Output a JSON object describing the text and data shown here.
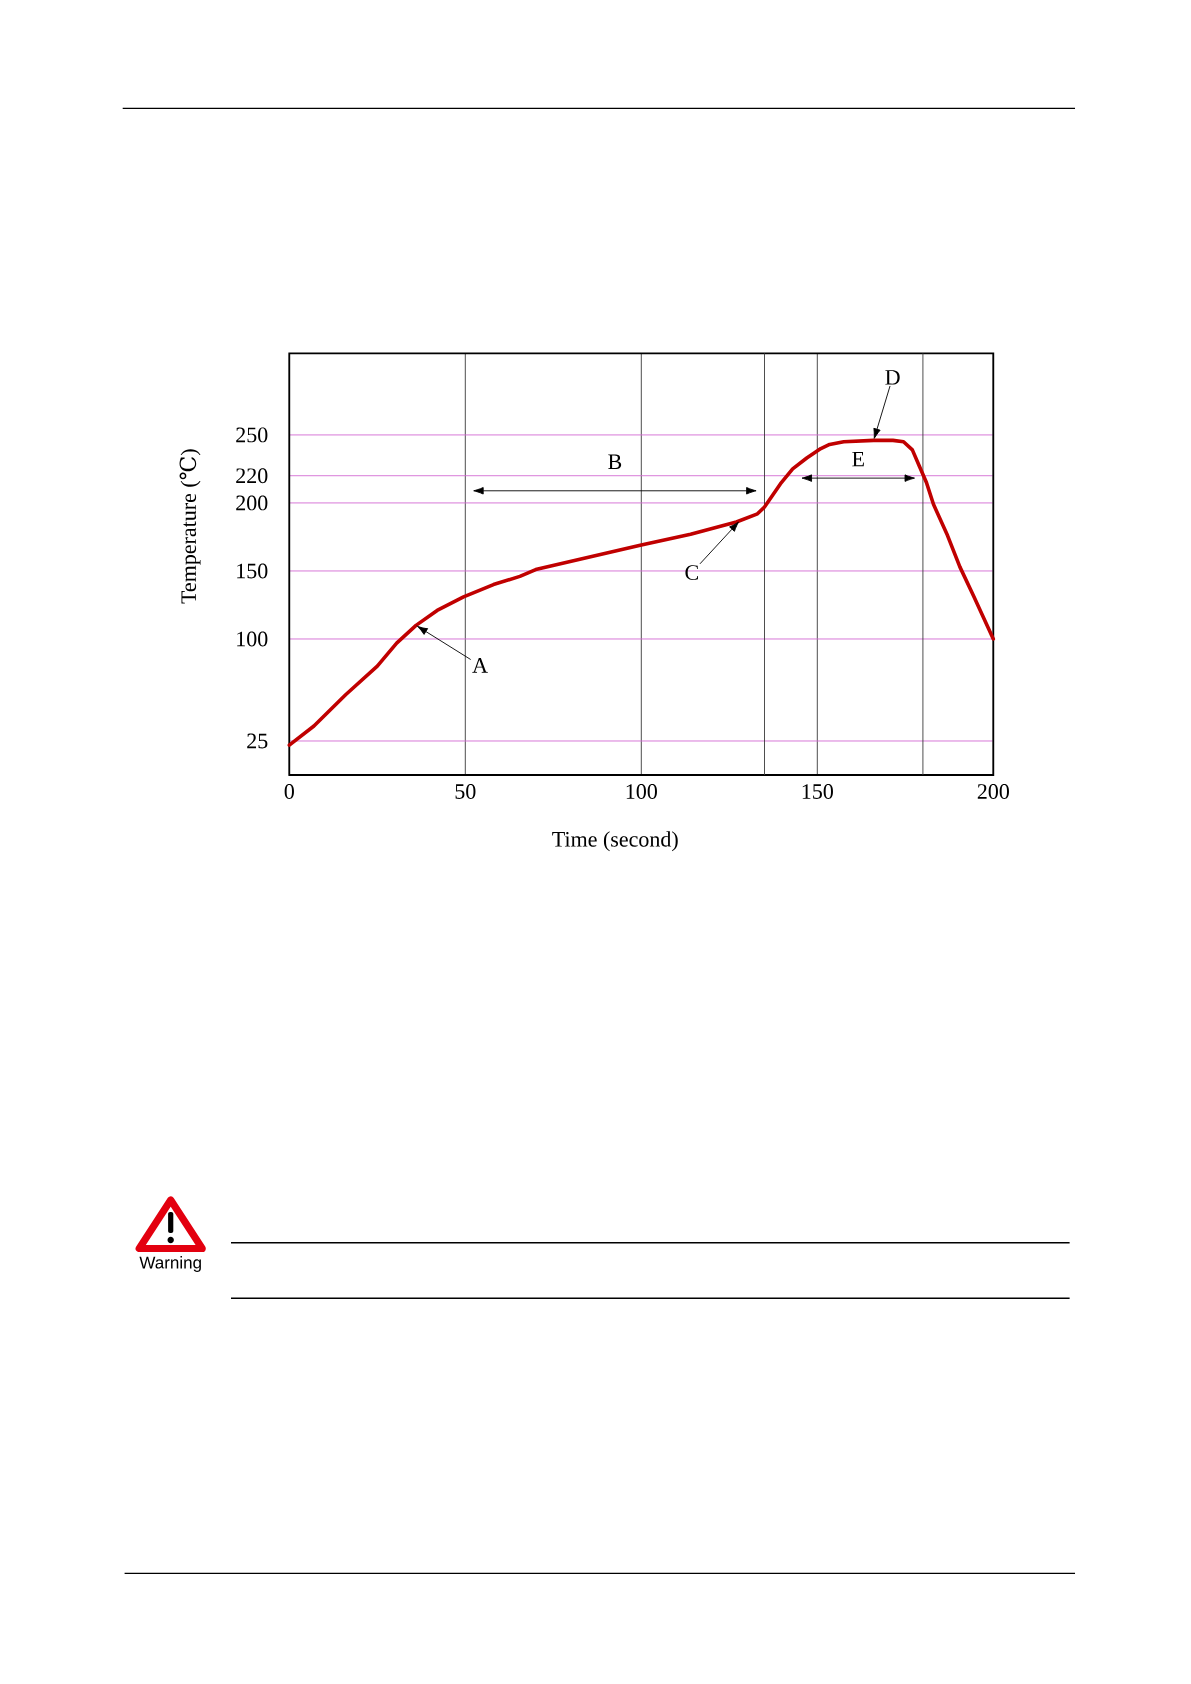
{
  "chart_data": {
    "type": "line",
    "xlabel": "Time (second)",
    "ylabel": "Temperature (℃)",
    "x": [
      0,
      7,
      16,
      25,
      30.5,
      36,
      42,
      49.5,
      58,
      65.5,
      70,
      85,
      100,
      114,
      127,
      133,
      135,
      139.5,
      143,
      147,
      151,
      153.5,
      157.5,
      166,
      171.5,
      174.5,
      177,
      179,
      181,
      183,
      187,
      190.5,
      194.5,
      200
    ],
    "series": [
      {
        "color": "#c00000",
        "values": [
          22,
          36,
          59,
          80,
          97,
          110,
          121,
          131,
          140,
          146,
          151,
          160,
          169,
          177,
          186,
          192,
          197,
          214,
          225,
          233,
          240,
          243,
          245,
          246,
          246,
          245,
          239,
          227,
          215,
          199,
          176,
          153,
          131,
          100
        ]
      }
    ],
    "xlim": [
      0,
      200
    ],
    "xticks": [
      0,
      50,
      100,
      150,
      200
    ],
    "ylim": [
      0,
      310
    ],
    "yticks": [
      25,
      100,
      150,
      200,
      220,
      250
    ],
    "grid": true,
    "line_style": "solid",
    "ref_lines": [
      {
        "axis": "x",
        "value": 135
      },
      {
        "axis": "x",
        "value": 180
      }
    ],
    "annotations": [
      {
        "text": "A",
        "x": 36,
        "y": 110
      },
      "B",
      {
        "text": "C",
        "x": 128,
        "y": 187
      },
      {
        "text": "D",
        "x": 166,
        "y": 246
      },
      "E",
      "Warning"
    ]
  }
}
